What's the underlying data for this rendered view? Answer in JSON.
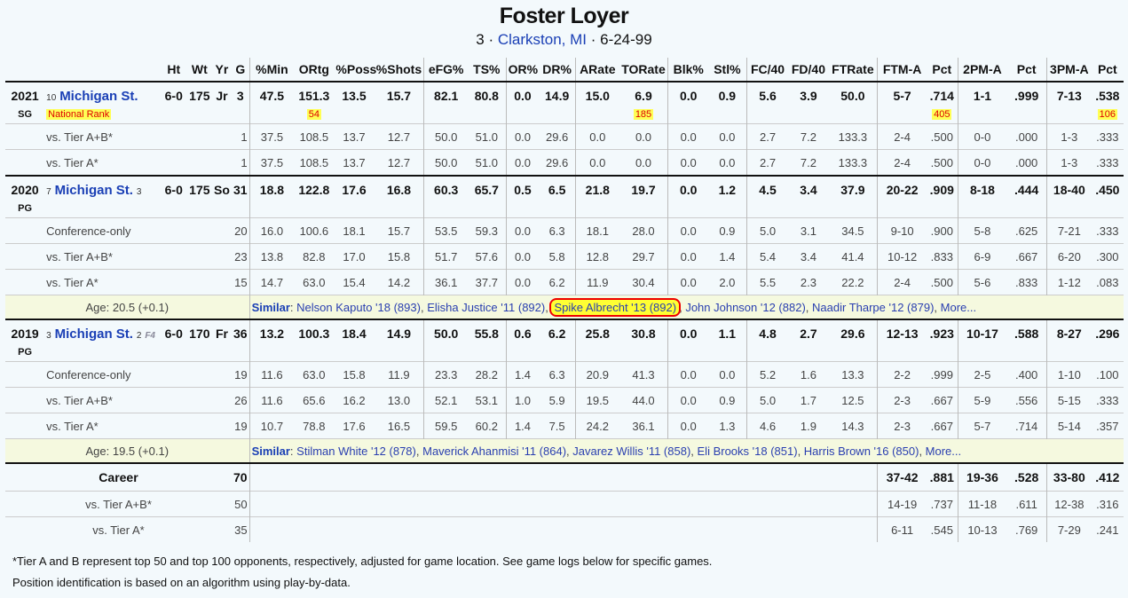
{
  "player": {
    "name": "Foster Loyer",
    "number": "3",
    "hometown": "Clarkston, MI",
    "dob": "6-24-99"
  },
  "headers": [
    "Ht",
    "Wt",
    "Yr",
    "G",
    "%Min",
    "ORtg",
    "%Poss",
    "%Shots",
    "eFG%",
    "TS%",
    "OR%",
    "DR%",
    "ARate",
    "TORate",
    "Blk%",
    "Stl%",
    "FC/40",
    "FD/40",
    "FTRate",
    "FTM-A",
    "Pct",
    "2PM-A",
    "Pct",
    "3PM-A",
    "Pct"
  ],
  "seasons": [
    {
      "year": "2021",
      "pos": "SG",
      "team_rank": "10",
      "team": "Michigan St.",
      "conf_rank": "",
      "tag": "",
      "ht": "6-0",
      "wt": "175",
      "yr": "Jr",
      "g": "3",
      "stats": [
        "47.5",
        "151.3",
        "13.5",
        "15.7",
        "82.1",
        "80.8",
        "0.0",
        "14.9",
        "15.0",
        "6.9",
        "0.0",
        "0.9",
        "5.6",
        "3.9",
        "50.0",
        "5-7",
        ".714",
        "1-1",
        ".999",
        "7-13",
        ".538"
      ],
      "rank_label": "National Rank",
      "ranks": {
        "1": "54",
        "9": "185",
        "16": "405",
        "20": "106"
      },
      "splits": [
        {
          "label": "vs. Tier A+B*",
          "g": "1",
          "stats": [
            "37.5",
            "108.5",
            "13.7",
            "12.7",
            "50.0",
            "51.0",
            "0.0",
            "29.6",
            "0.0",
            "0.0",
            "0.0",
            "0.0",
            "2.7",
            "7.2",
            "133.3",
            "2-4",
            ".500",
            "0-0",
            ".000",
            "1-3",
            ".333"
          ]
        },
        {
          "label": "vs. Tier A*",
          "g": "1",
          "stats": [
            "37.5",
            "108.5",
            "13.7",
            "12.7",
            "50.0",
            "51.0",
            "0.0",
            "29.6",
            "0.0",
            "0.0",
            "0.0",
            "0.0",
            "2.7",
            "7.2",
            "133.3",
            "2-4",
            ".500",
            "0-0",
            ".000",
            "1-3",
            ".333"
          ]
        }
      ]
    },
    {
      "year": "2020",
      "pos": "PG",
      "team_rank": "7",
      "team": "Michigan St.",
      "conf_rank": "3",
      "tag": "",
      "ht": "6-0",
      "wt": "175",
      "yr": "So",
      "g": "31",
      "stats": [
        "18.8",
        "122.8",
        "17.6",
        "16.8",
        "60.3",
        "65.7",
        "0.5",
        "6.5",
        "21.8",
        "19.7",
        "0.0",
        "1.2",
        "4.5",
        "3.4",
        "37.9",
        "20-22",
        ".909",
        "8-18",
        ".444",
        "18-40",
        ".450"
      ],
      "splits": [
        {
          "label": "Conference-only",
          "g": "20",
          "stats": [
            "16.0",
            "100.6",
            "18.1",
            "15.7",
            "53.5",
            "59.3",
            "0.0",
            "6.3",
            "18.1",
            "28.0",
            "0.0",
            "0.9",
            "5.0",
            "3.1",
            "34.5",
            "9-10",
            ".900",
            "5-8",
            ".625",
            "7-21",
            ".333"
          ]
        },
        {
          "label": "vs. Tier A+B*",
          "g": "23",
          "stats": [
            "13.8",
            "82.8",
            "17.0",
            "15.8",
            "51.7",
            "57.6",
            "0.0",
            "5.8",
            "12.8",
            "29.7",
            "0.0",
            "1.4",
            "5.4",
            "3.4",
            "41.4",
            "10-12",
            ".833",
            "6-9",
            ".667",
            "6-20",
            ".300"
          ]
        },
        {
          "label": "vs. Tier A*",
          "g": "15",
          "stats": [
            "14.7",
            "63.0",
            "15.4",
            "14.2",
            "36.1",
            "37.7",
            "0.0",
            "6.2",
            "11.9",
            "30.4",
            "0.0",
            "2.0",
            "5.5",
            "2.3",
            "22.2",
            "2-4",
            ".500",
            "5-6",
            ".833",
            "1-12",
            ".083"
          ]
        }
      ],
      "age": "Age: 20.5 (+0.1)",
      "similar_label": "Similar",
      "similar": [
        "Nelson Kaputo '18 (893)",
        "Elisha Justice '11 (892)",
        "Spike Albrecht '13 (892)",
        "John Johnson '12 (882)",
        "Naadir Tharpe '12 (879)"
      ],
      "highlight": 2,
      "more": "More..."
    },
    {
      "year": "2019",
      "pos": "PG",
      "team_rank": "3",
      "team": "Michigan St.",
      "conf_rank": "2",
      "tag": "F4",
      "ht": "6-0",
      "wt": "170",
      "yr": "Fr",
      "g": "36",
      "stats": [
        "13.2",
        "100.3",
        "18.4",
        "14.9",
        "50.0",
        "55.8",
        "0.6",
        "6.2",
        "25.8",
        "30.8",
        "0.0",
        "1.1",
        "4.8",
        "2.7",
        "29.6",
        "12-13",
        ".923",
        "10-17",
        ".588",
        "8-27",
        ".296"
      ],
      "splits": [
        {
          "label": "Conference-only",
          "g": "19",
          "stats": [
            "11.6",
            "63.0",
            "15.8",
            "11.9",
            "23.3",
            "28.2",
            "1.4",
            "6.3",
            "20.9",
            "41.3",
            "0.0",
            "0.0",
            "5.2",
            "1.6",
            "13.3",
            "2-2",
            ".999",
            "2-5",
            ".400",
            "1-10",
            ".100"
          ]
        },
        {
          "label": "vs. Tier A+B*",
          "g": "26",
          "stats": [
            "11.6",
            "65.6",
            "16.2",
            "13.0",
            "52.1",
            "53.1",
            "1.0",
            "5.9",
            "19.5",
            "44.0",
            "0.0",
            "0.9",
            "5.0",
            "1.7",
            "12.5",
            "2-3",
            ".667",
            "5-9",
            ".556",
            "5-15",
            ".333"
          ]
        },
        {
          "label": "vs. Tier A*",
          "g": "19",
          "stats": [
            "10.7",
            "78.8",
            "17.6",
            "16.5",
            "59.5",
            "60.2",
            "1.4",
            "7.5",
            "24.2",
            "36.1",
            "0.0",
            "1.3",
            "4.6",
            "1.9",
            "14.3",
            "2-3",
            ".667",
            "5-7",
            ".714",
            "5-14",
            ".357"
          ]
        }
      ],
      "age": "Age: 19.5 (+0.1)",
      "similar_label": "Similar",
      "similar": [
        "Stilman White '12 (878)",
        "Maverick Ahanmisi '11 (864)",
        "Javarez Willis '11 (858)",
        "Eli Brooks '18 (851)",
        "Harris Brown '16 (850)"
      ],
      "highlight": -1,
      "more": "More..."
    }
  ],
  "career": {
    "label": "Career",
    "g": "70",
    "stats": [
      "37-42",
      ".881",
      "19-36",
      ".528",
      "33-80",
      ".412"
    ],
    "splits": [
      {
        "label": "vs. Tier A+B*",
        "g": "50",
        "stats": [
          "14-19",
          ".737",
          "11-18",
          ".611",
          "12-38",
          ".316"
        ]
      },
      {
        "label": "vs. Tier A*",
        "g": "35",
        "stats": [
          "6-11",
          ".545",
          "10-13",
          ".769",
          "7-29",
          ".241"
        ]
      }
    ]
  },
  "footnotes": [
    "*Tier A and B represent top 50 and top 100 opponents, respectively, adjusted for game location. See game logs below for specific games.",
    "Position identification is based on an algorithm using play-by-data."
  ]
}
